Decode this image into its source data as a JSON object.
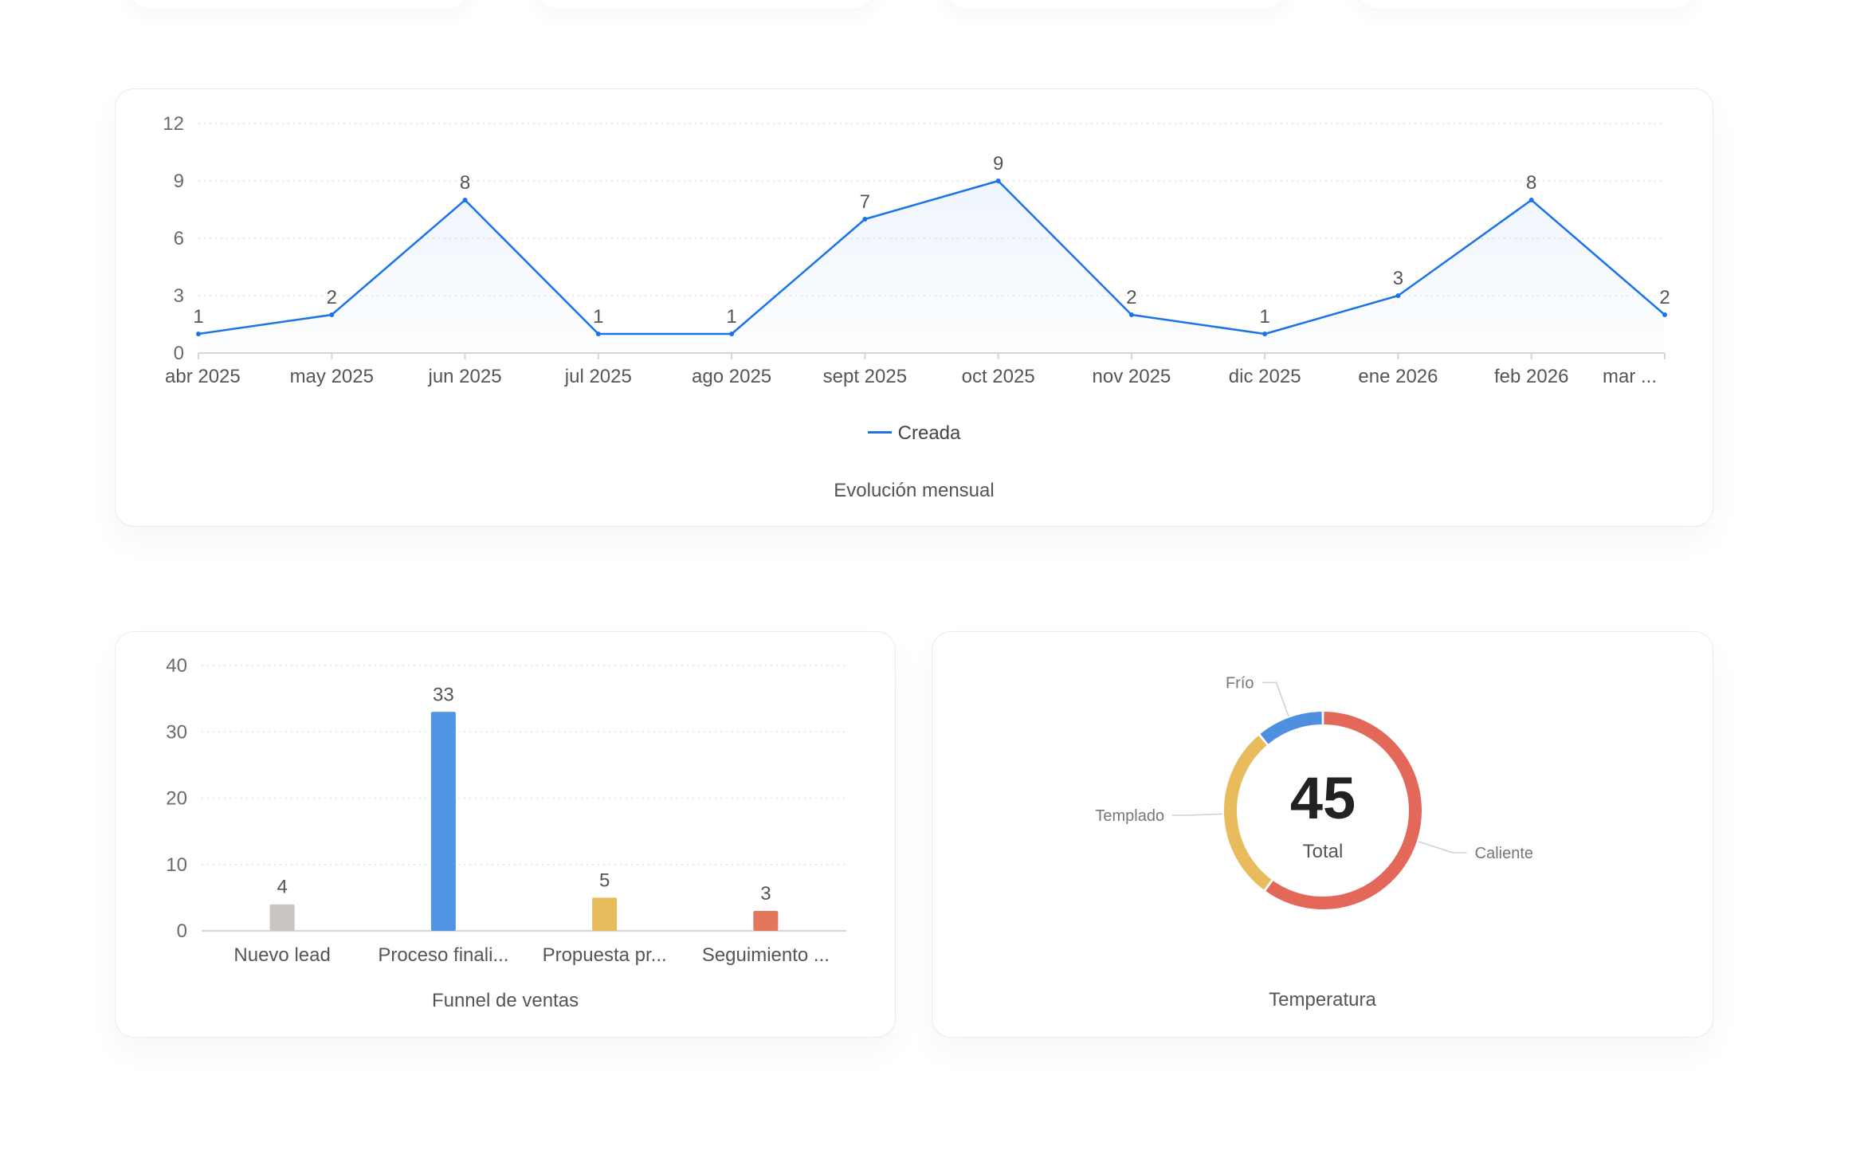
{
  "line_chart": {
    "title": "Evolución mensual",
    "legend": "Creada",
    "color": "#1a73e8"
  },
  "funnel_chart": {
    "title": "Funnel de ventas"
  },
  "donut_chart": {
    "title": "Temperatura",
    "total_value": "45",
    "total_label": "Total"
  },
  "chart_data": [
    {
      "type": "line",
      "title": "Evolución mensual",
      "categories": [
        "abr 2025",
        "may 2025",
        "jun 2025",
        "jul 2025",
        "ago 2025",
        "sept 2025",
        "oct 2025",
        "nov 2025",
        "dic 2025",
        "ene 2026",
        "feb 2026",
        "mar ..."
      ],
      "series": [
        {
          "name": "Creada",
          "values": [
            1,
            2,
            8,
            1,
            1,
            7,
            9,
            2,
            1,
            3,
            8,
            2
          ],
          "color": "#1a73e8"
        }
      ],
      "yticks": [
        0,
        3,
        6,
        9,
        12
      ],
      "ylim": [
        0,
        12
      ],
      "legend_position": "bottom",
      "grid": true,
      "area_fill": true,
      "data_labels": true
    },
    {
      "type": "bar",
      "title": "Funnel de ventas",
      "categories": [
        "Nuevo lead",
        "Proceso finali...",
        "Propuesta pr...",
        "Seguimiento ..."
      ],
      "values": [
        4,
        33,
        5,
        3
      ],
      "colors": [
        "#c8c5c2",
        "#4f95e3",
        "#e8bb5c",
        "#e2775d"
      ],
      "yticks": [
        0,
        10,
        20,
        30,
        40
      ],
      "ylim": [
        0,
        40
      ],
      "grid": true,
      "data_labels": true
    },
    {
      "type": "pie",
      "title": "Temperatura",
      "donut": true,
      "labels": [
        "Caliente",
        "Templado",
        "Frío"
      ],
      "values": [
        27,
        13,
        5
      ],
      "colors": [
        "#e4685a",
        "#e8bb5c",
        "#4f8fe0"
      ],
      "center_value": "45",
      "center_label": "Total"
    }
  ]
}
